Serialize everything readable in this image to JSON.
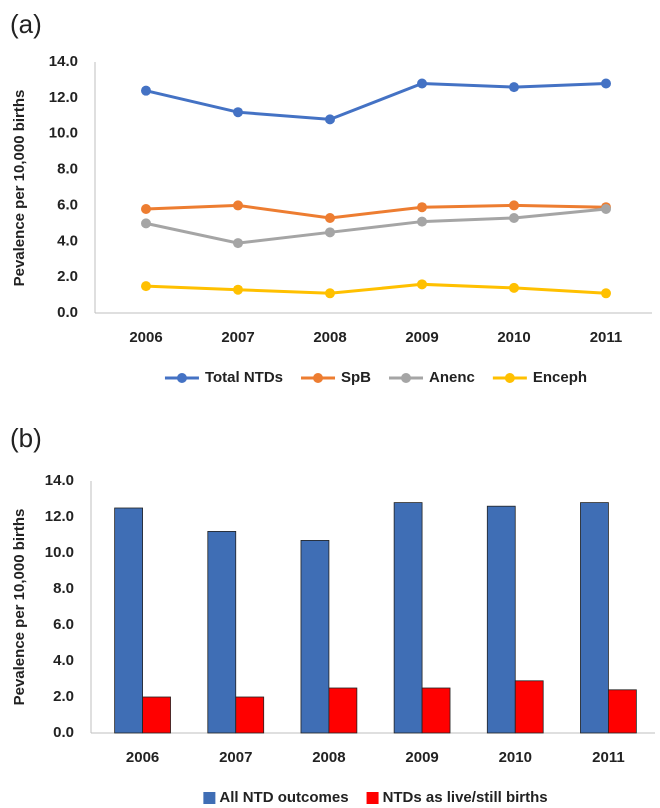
{
  "chart_data": [
    {
      "type": "line",
      "panel": "(a)",
      "ylabel": "Pevalence per 10,000 births",
      "categories": [
        "2006",
        "2007",
        "2008",
        "2009",
        "2010",
        "2011"
      ],
      "series": [
        {
          "name": "Total NTDs",
          "color": "#4472c4",
          "values": [
            12.4,
            11.2,
            10.8,
            12.8,
            12.6,
            12.8
          ]
        },
        {
          "name": "SpB",
          "color": "#ed7d31",
          "values": [
            5.8,
            6.0,
            5.3,
            5.9,
            6.0,
            5.9
          ]
        },
        {
          "name": "Anenc",
          "color": "#a5a5a5",
          "values": [
            5.0,
            3.9,
            4.5,
            5.1,
            5.3,
            5.8
          ]
        },
        {
          "name": "Enceph",
          "color": "#ffc000",
          "values": [
            1.5,
            1.3,
            1.1,
            1.6,
            1.4,
            1.1
          ]
        }
      ],
      "ylim": [
        0,
        14
      ],
      "yticks": [
        {
          "value": 0,
          "label": "0.0"
        },
        {
          "value": 2,
          "label": "2.0"
        },
        {
          "value": 4,
          "label": "4.0"
        },
        {
          "value": 6,
          "label": "6.0"
        },
        {
          "value": 8,
          "label": "8.0"
        },
        {
          "value": 10,
          "label": "10.0"
        },
        {
          "value": 12,
          "label": "12.0"
        },
        {
          "value": 14,
          "label": "14.0"
        }
      ],
      "legend": "bottom"
    },
    {
      "type": "bar",
      "panel": "(b)",
      "ylabel": "Pevalence per 10,000 births",
      "categories": [
        "2006",
        "2007",
        "2008",
        "2009",
        "2010",
        "2011"
      ],
      "series": [
        {
          "name": "All NTD outcomes",
          "color": "#3f6eb5",
          "values": [
            12.5,
            11.2,
            10.7,
            12.8,
            12.6,
            12.8
          ]
        },
        {
          "name": "NTDs as live/still births",
          "color": "#ff0000",
          "values": [
            2.0,
            2.0,
            2.5,
            2.5,
            2.9,
            2.4
          ]
        }
      ],
      "ylim": [
        0,
        14
      ],
      "yticks": [
        {
          "value": 0,
          "label": "0.0"
        },
        {
          "value": 2,
          "label": "2.0"
        },
        {
          "value": 4,
          "label": "4.0"
        },
        {
          "value": 6,
          "label": "6.0"
        },
        {
          "value": 8,
          "label": "8.0"
        },
        {
          "value": 10,
          "label": "10.0"
        },
        {
          "value": 12,
          "label": "12.0"
        },
        {
          "value": 14,
          "label": "14.0"
        }
      ],
      "legend": "bottom"
    }
  ]
}
